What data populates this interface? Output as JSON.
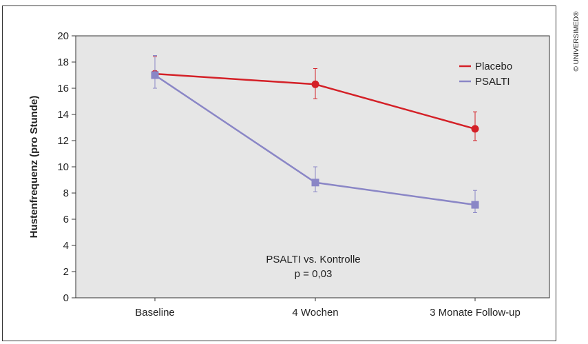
{
  "chart_data": {
    "type": "line",
    "title": "",
    "xlabel": "",
    "ylabel": "Hustenfrequenz (pro Stunde)",
    "categories": [
      "Baseline",
      "4 Wochen",
      "3 Monate Follow-up"
    ],
    "ylim": [
      0,
      20
    ],
    "yticks": [
      "0",
      "2",
      "4",
      "6",
      "8",
      "10",
      "12",
      "14",
      "16",
      "18",
      "20"
    ],
    "grid": false,
    "legend_position": "top-right",
    "series": [
      {
        "name": "Placebo",
        "color": "#d42027",
        "marker": "circle",
        "values": [
          17.1,
          16.3,
          12.9
        ],
        "error_low": [
          16.0,
          15.2,
          12.0
        ],
        "error_high": [
          18.4,
          17.5,
          14.2
        ]
      },
      {
        "name": "PSALTI",
        "color": "#8a86c6",
        "marker": "square",
        "values": [
          17.0,
          8.8,
          7.1
        ],
        "error_low": [
          16.0,
          8.1,
          6.5
        ],
        "error_high": [
          18.5,
          10.0,
          8.2
        ]
      }
    ],
    "annotations": [
      "PSALTI vs. Kontrolle",
      "p = 0,03"
    ],
    "plot_background": "#e6e6e6"
  },
  "copyright": "© UNIVERSIMED®"
}
